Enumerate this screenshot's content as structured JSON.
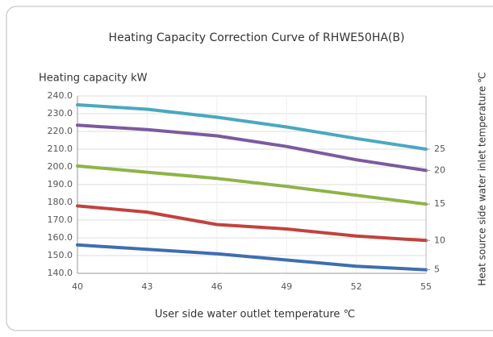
{
  "chart_data": {
    "type": "line",
    "title": "Heating Capacity Correction Curve of RHWE50HA(B)",
    "y_label": "Heating capacity kW",
    "x_label": "User side water outlet temperature ℃",
    "y2_label": "Heat source side water inlet temperature ℃",
    "x": [
      40,
      43,
      46,
      49,
      52,
      55
    ],
    "xlim": [
      40,
      55
    ],
    "xticks": [
      40,
      43,
      46,
      49,
      52,
      55
    ],
    "ylim": [
      140,
      240
    ],
    "yticks": [
      {
        "value": 140,
        "label": "140.0"
      },
      {
        "value": 150,
        "label": "150.0"
      },
      {
        "value": 160,
        "label": "160.0"
      },
      {
        "value": 170,
        "label": "170.0"
      },
      {
        "value": 180,
        "label": "180.0"
      },
      {
        "value": 190,
        "label": "190.0"
      },
      {
        "value": 200,
        "label": "200.0"
      },
      {
        "value": 210,
        "label": "210.0"
      },
      {
        "value": 220,
        "label": "220.0"
      },
      {
        "value": 230,
        "label": "230.0"
      },
      {
        "value": 240,
        "label": "240.0"
      }
    ],
    "grid": true,
    "series": [
      {
        "name": "25",
        "color": "#4aa8c0",
        "values": [
          235,
          232.5,
          228,
          222.5,
          216,
          210
        ]
      },
      {
        "name": "20",
        "color": "#7b5a9e",
        "values": [
          223.5,
          221,
          217.5,
          211.5,
          204,
          198
        ]
      },
      {
        "name": "15",
        "color": "#8db446",
        "values": [
          200.5,
          197,
          193.5,
          189,
          184,
          179
        ]
      },
      {
        "name": "10",
        "color": "#c0433e",
        "values": [
          178,
          174.5,
          167.5,
          165,
          161,
          158.5
        ]
      },
      {
        "name": "5",
        "color": "#3e6eb0",
        "values": [
          156,
          153.5,
          151,
          147.5,
          144,
          142
        ]
      }
    ]
  }
}
